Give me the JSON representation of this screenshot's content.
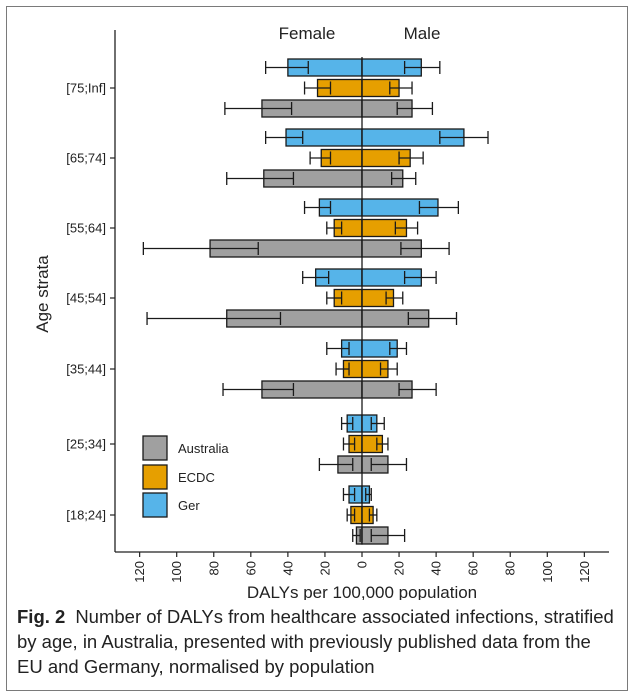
{
  "chart_data": {
    "type": "bar",
    "orientation": "horizontal-butterfly",
    "xlabel": "DALYs per 100,000 population",
    "ylabel": "Age strata",
    "side_labels": {
      "left": "Female",
      "right": "Male"
    },
    "xlim": [
      -130,
      130
    ],
    "xticks": [
      -120,
      -100,
      -80,
      -60,
      -40,
      -20,
      0,
      20,
      40,
      60,
      80,
      100,
      120
    ],
    "xtick_labels": [
      "120",
      "100",
      "80",
      "60",
      "40",
      "20",
      "0",
      "20",
      "40",
      "60",
      "80",
      "100",
      "120"
    ],
    "categories": [
      "[18;24]",
      "[25;34]",
      "[35;44]",
      "[45;54]",
      "[55;64]",
      "[65;74]",
      "[75;Inf]"
    ],
    "series_order": [
      "Ger",
      "ECDC",
      "Australia"
    ],
    "legend": {
      "position": "inside-bottom-left",
      "entries": [
        {
          "name": "Australia",
          "color": "#a0a0a0"
        },
        {
          "name": "ECDC",
          "color": "#e69f00"
        },
        {
          "name": "Ger",
          "color": "#56b4e9"
        }
      ]
    },
    "series": [
      {
        "name": "Ger",
        "color": "#56b4e9",
        "female": [
          7,
          8,
          11,
          25,
          23,
          41,
          40
        ],
        "female_ci": [
          [
            4,
            10
          ],
          [
            5,
            11
          ],
          [
            7,
            19
          ],
          [
            18,
            32
          ],
          [
            17,
            31
          ],
          [
            32,
            52
          ],
          [
            29,
            52
          ]
        ],
        "male": [
          4,
          8,
          19,
          32,
          41,
          55,
          32
        ],
        "male_ci": [
          [
            2,
            5
          ],
          [
            5,
            12
          ],
          [
            15,
            24
          ],
          [
            23,
            40
          ],
          [
            31,
            52
          ],
          [
            42,
            68
          ],
          [
            23,
            42
          ]
        ]
      },
      {
        "name": "ECDC",
        "color": "#e69f00",
        "female": [
          6,
          7,
          10,
          15,
          15,
          22,
          24
        ],
        "female_ci": [
          [
            4,
            8
          ],
          [
            4,
            10
          ],
          [
            7,
            14
          ],
          [
            11,
            19
          ],
          [
            11,
            19
          ],
          [
            17,
            28
          ],
          [
            17,
            31
          ]
        ],
        "male": [
          6,
          11,
          14,
          17,
          24,
          26,
          20
        ],
        "male_ci": [
          [
            4,
            8
          ],
          [
            8,
            14
          ],
          [
            10,
            19
          ],
          [
            13,
            22
          ],
          [
            18,
            30
          ],
          [
            20,
            33
          ],
          [
            15,
            27
          ]
        ]
      },
      {
        "name": "Australia",
        "color": "#a0a0a0",
        "female": [
          3,
          13,
          54,
          73,
          82,
          53,
          54
        ],
        "female_ci": [
          [
            1,
            5
          ],
          [
            5,
            23
          ],
          [
            37,
            75
          ],
          [
            44,
            116
          ],
          [
            56,
            118
          ],
          [
            37,
            73
          ],
          [
            38,
            74
          ]
        ],
        "male": [
          14,
          14,
          27,
          36,
          32,
          22,
          27
        ],
        "male_ci": [
          [
            5,
            23
          ],
          [
            5,
            24
          ],
          [
            20,
            40
          ],
          [
            25,
            51
          ],
          [
            21,
            47
          ],
          [
            16,
            29
          ],
          [
            19,
            38
          ]
        ]
      }
    ]
  },
  "caption": {
    "label": "Fig. 2",
    "text": "Number of DALYs from healthcare associated infections, stratified by age, in Australia, presented with previously published data from the EU and Germany, normalised by population"
  }
}
